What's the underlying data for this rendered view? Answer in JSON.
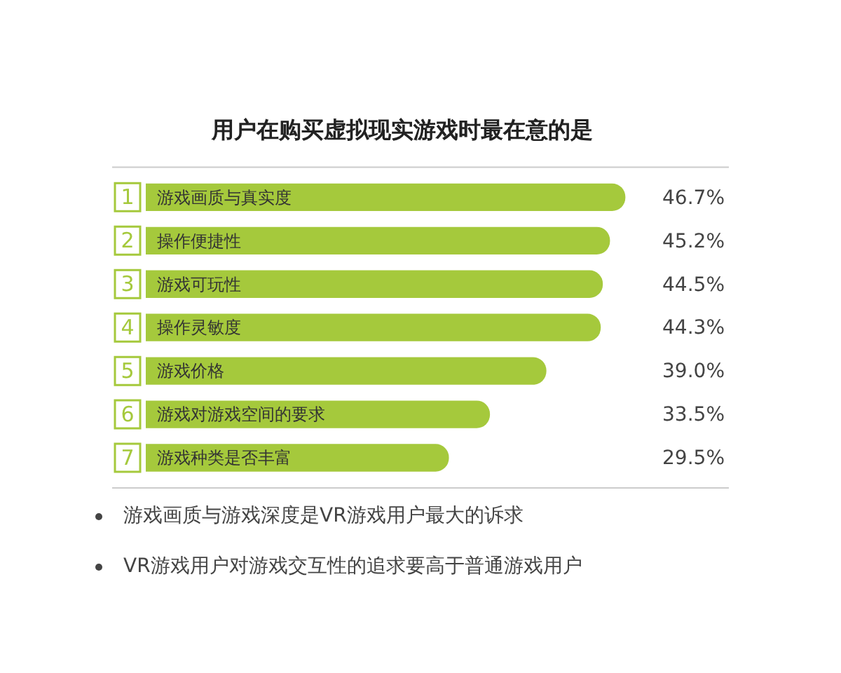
{
  "chart_data": {
    "type": "bar",
    "orientation": "horizontal",
    "title": "用户在购买虚拟现实游戏时最在意的是",
    "categories": [
      "1 游戏画质与真实度",
      "2 操作便捷性",
      "3 游戏可玩性",
      "4 操作灵敏度",
      "5 游戏价格",
      "6 游戏对游戏空间的要求",
      "7 游戏种类是否丰富"
    ],
    "values": [
      46.7,
      45.2,
      44.5,
      44.3,
      39.0,
      33.5,
      29.5
    ],
    "value_labels": [
      "46.7%",
      "45.2%",
      "44.5%",
      "44.3%",
      "39.0%",
      "33.5%",
      "29.5%"
    ],
    "color": "#a5c93c",
    "tick_labels": false,
    "legend": false,
    "annotations": [
      "游戏画质与游戏深度是VR游戏用户最大的诉求",
      "VR游戏用户对游戏交互性的追求要高于普通游戏用户"
    ]
  }
}
